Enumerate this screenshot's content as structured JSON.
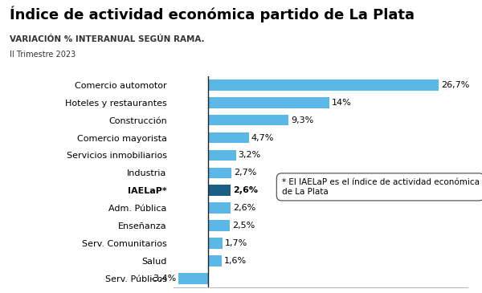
{
  "chart_data": {
    "type": "bar",
    "orientation": "horizontal",
    "title": "Índice de actividad económica partido de La Plata",
    "subtitle": "VARIACIÓN % INTERANUAL SEGÚN RAMA.",
    "period": "II Trimestre 2023",
    "annotation": "* El IAELaP es el índice de actividad económica de La Plata",
    "categories": [
      "Comercio automotor",
      "Hoteles y restaurantes",
      "Construcción",
      "Comercio mayorista",
      "Servicios inmobiliarios",
      "Industria",
      "IAELaP*",
      "Adm. Pública",
      "Enseñanza",
      "Serv. Comunitarios",
      "Salud",
      "Serv. Públicos"
    ],
    "values": [
      26.7,
      14,
      9.3,
      4.7,
      3.2,
      2.7,
      2.6,
      2.6,
      2.5,
      1.7,
      1.6,
      -3.4
    ],
    "value_labels": [
      "26,7%",
      "14%",
      "9,3%",
      "4,7%",
      "3,2%",
      "2,7%",
      "2,6%",
      "2,6%",
      "2,5%",
      "1,7%",
      "1,6%",
      "-3,4%"
    ],
    "colors": [
      "#5ab7e6",
      "#5ab7e6",
      "#5ab7e6",
      "#5ab7e6",
      "#5ab7e6",
      "#5ab7e6",
      "#1b5e86",
      "#5ab7e6",
      "#5ab7e6",
      "#5ab7e6",
      "#5ab7e6",
      "#5ab7e6"
    ],
    "xlim": [
      -4,
      30
    ],
    "xticks": [],
    "data_labels": true,
    "tick_labels": "y",
    "grid": false
  }
}
